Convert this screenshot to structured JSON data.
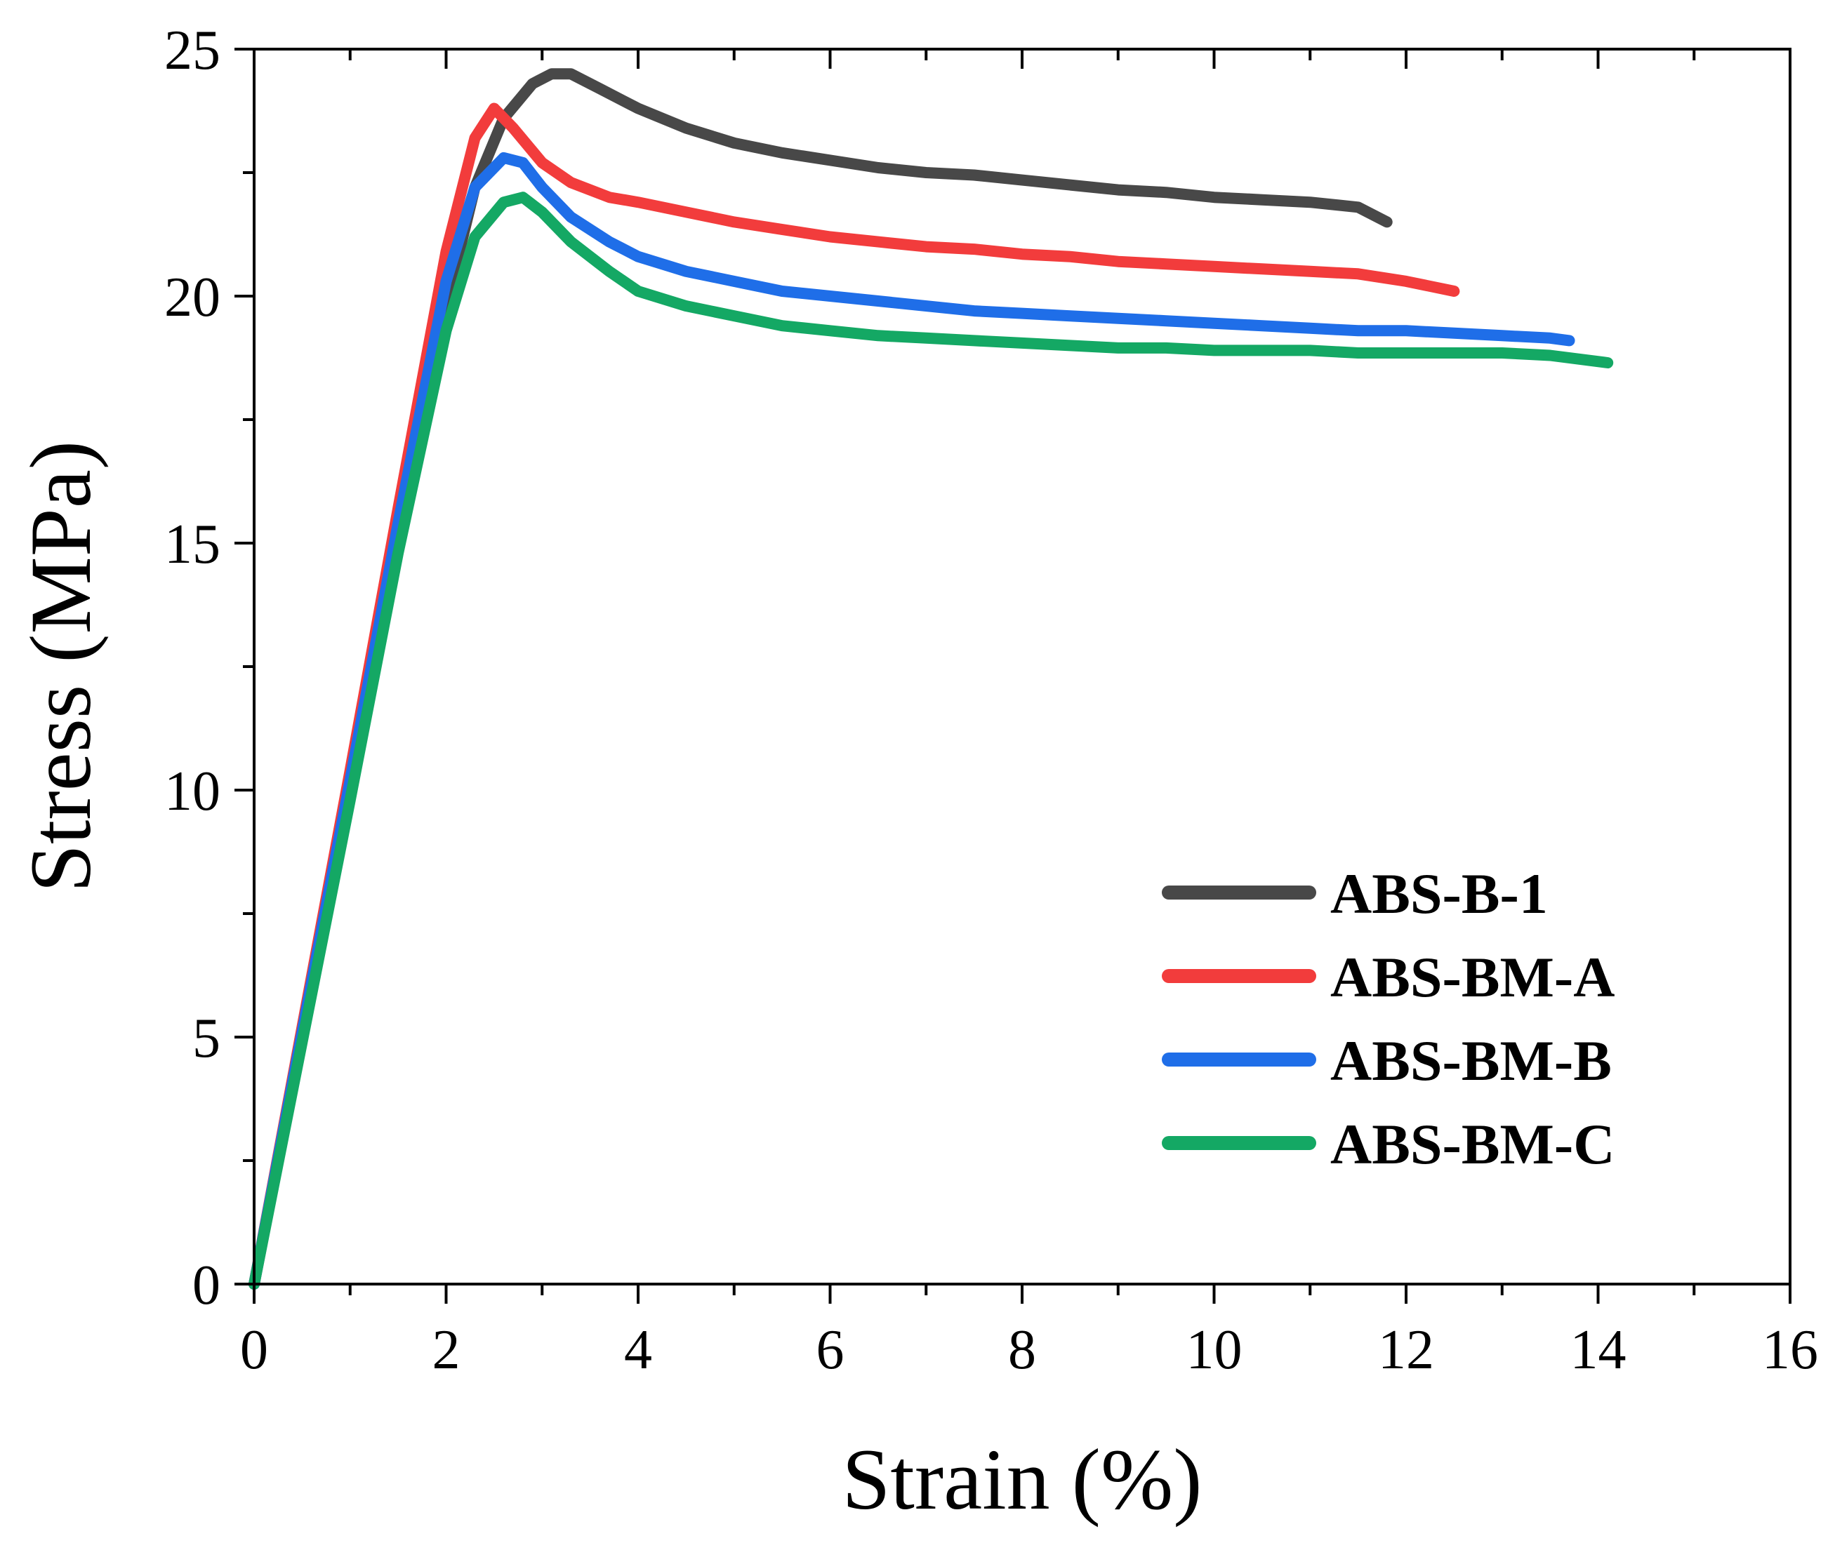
{
  "chart_data": {
    "type": "line",
    "xlabel": "Strain (%)",
    "ylabel": "Stress (MPa)",
    "xlim": [
      0,
      16
    ],
    "ylim": [
      0,
      25
    ],
    "xticks": [
      0,
      2,
      4,
      6,
      8,
      10,
      12,
      14,
      16
    ],
    "yticks": [
      0,
      5,
      10,
      15,
      20,
      25
    ],
    "legend_position": "bottom-right",
    "series": [
      {
        "name": "ABS-B-1",
        "color": "#484848",
        "x": [
          0,
          0.5,
          1.0,
          1.5,
          2.0,
          2.3,
          2.6,
          2.9,
          3.1,
          3.3,
          3.6,
          4.0,
          4.5,
          5.0,
          5.5,
          6.0,
          6.5,
          7.0,
          7.5,
          8.0,
          8.5,
          9.0,
          9.5,
          10.0,
          10.5,
          11.0,
          11.5,
          11.8
        ],
        "y": [
          0,
          5.0,
          10.0,
          15.0,
          19.8,
          22.2,
          23.6,
          24.3,
          24.5,
          24.5,
          24.2,
          23.8,
          23.4,
          23.1,
          22.9,
          22.75,
          22.6,
          22.5,
          22.45,
          22.35,
          22.25,
          22.15,
          22.1,
          22.0,
          21.95,
          21.9,
          21.8,
          21.5
        ]
      },
      {
        "name": "ABS-BM-A",
        "color": "#f23c3c",
        "x": [
          0,
          0.5,
          1.0,
          1.5,
          2.0,
          2.3,
          2.5,
          2.7,
          3.0,
          3.3,
          3.7,
          4.0,
          4.5,
          5.0,
          5.5,
          6.0,
          6.5,
          7.0,
          7.5,
          8.0,
          8.5,
          9.0,
          9.5,
          10.0,
          10.5,
          11.0,
          11.5,
          12.0,
          12.5
        ],
        "y": [
          0,
          5.2,
          10.4,
          15.7,
          20.9,
          23.2,
          23.8,
          23.4,
          22.7,
          22.3,
          22.0,
          21.9,
          21.7,
          21.5,
          21.35,
          21.2,
          21.1,
          21.0,
          20.95,
          20.85,
          20.8,
          20.7,
          20.65,
          20.6,
          20.55,
          20.5,
          20.45,
          20.3,
          20.1
        ]
      },
      {
        "name": "ABS-BM-B",
        "color": "#1f6ee8",
        "x": [
          0,
          0.5,
          1.0,
          1.5,
          2.0,
          2.3,
          2.6,
          2.8,
          3.0,
          3.3,
          3.7,
          4.0,
          4.5,
          5.0,
          5.5,
          6.0,
          6.5,
          7.0,
          7.5,
          8.0,
          8.5,
          9.0,
          9.5,
          10.0,
          10.5,
          11.0,
          11.5,
          12.0,
          12.5,
          13.0,
          13.5,
          13.7
        ],
        "y": [
          0,
          5.1,
          10.2,
          15.4,
          20.3,
          22.2,
          22.8,
          22.7,
          22.2,
          21.6,
          21.1,
          20.8,
          20.5,
          20.3,
          20.1,
          20.0,
          19.9,
          19.8,
          19.7,
          19.65,
          19.6,
          19.55,
          19.5,
          19.45,
          19.4,
          19.35,
          19.3,
          19.3,
          19.25,
          19.2,
          19.15,
          19.1
        ]
      },
      {
        "name": "ABS-BM-C",
        "color": "#14a864",
        "x": [
          0,
          0.5,
          1.0,
          1.5,
          2.0,
          2.3,
          2.6,
          2.8,
          3.0,
          3.3,
          3.7,
          4.0,
          4.5,
          5.0,
          5.5,
          6.0,
          6.5,
          7.0,
          7.5,
          8.0,
          8.5,
          9.0,
          9.5,
          10.0,
          10.5,
          11.0,
          11.5,
          12.0,
          12.5,
          13.0,
          13.5,
          14.1
        ],
        "y": [
          0,
          4.9,
          9.8,
          14.8,
          19.3,
          21.2,
          21.9,
          22.0,
          21.7,
          21.1,
          20.5,
          20.1,
          19.8,
          19.6,
          19.4,
          19.3,
          19.2,
          19.15,
          19.1,
          19.05,
          19.0,
          18.95,
          18.95,
          18.9,
          18.9,
          18.9,
          18.85,
          18.85,
          18.85,
          18.85,
          18.8,
          18.65
        ]
      }
    ]
  }
}
